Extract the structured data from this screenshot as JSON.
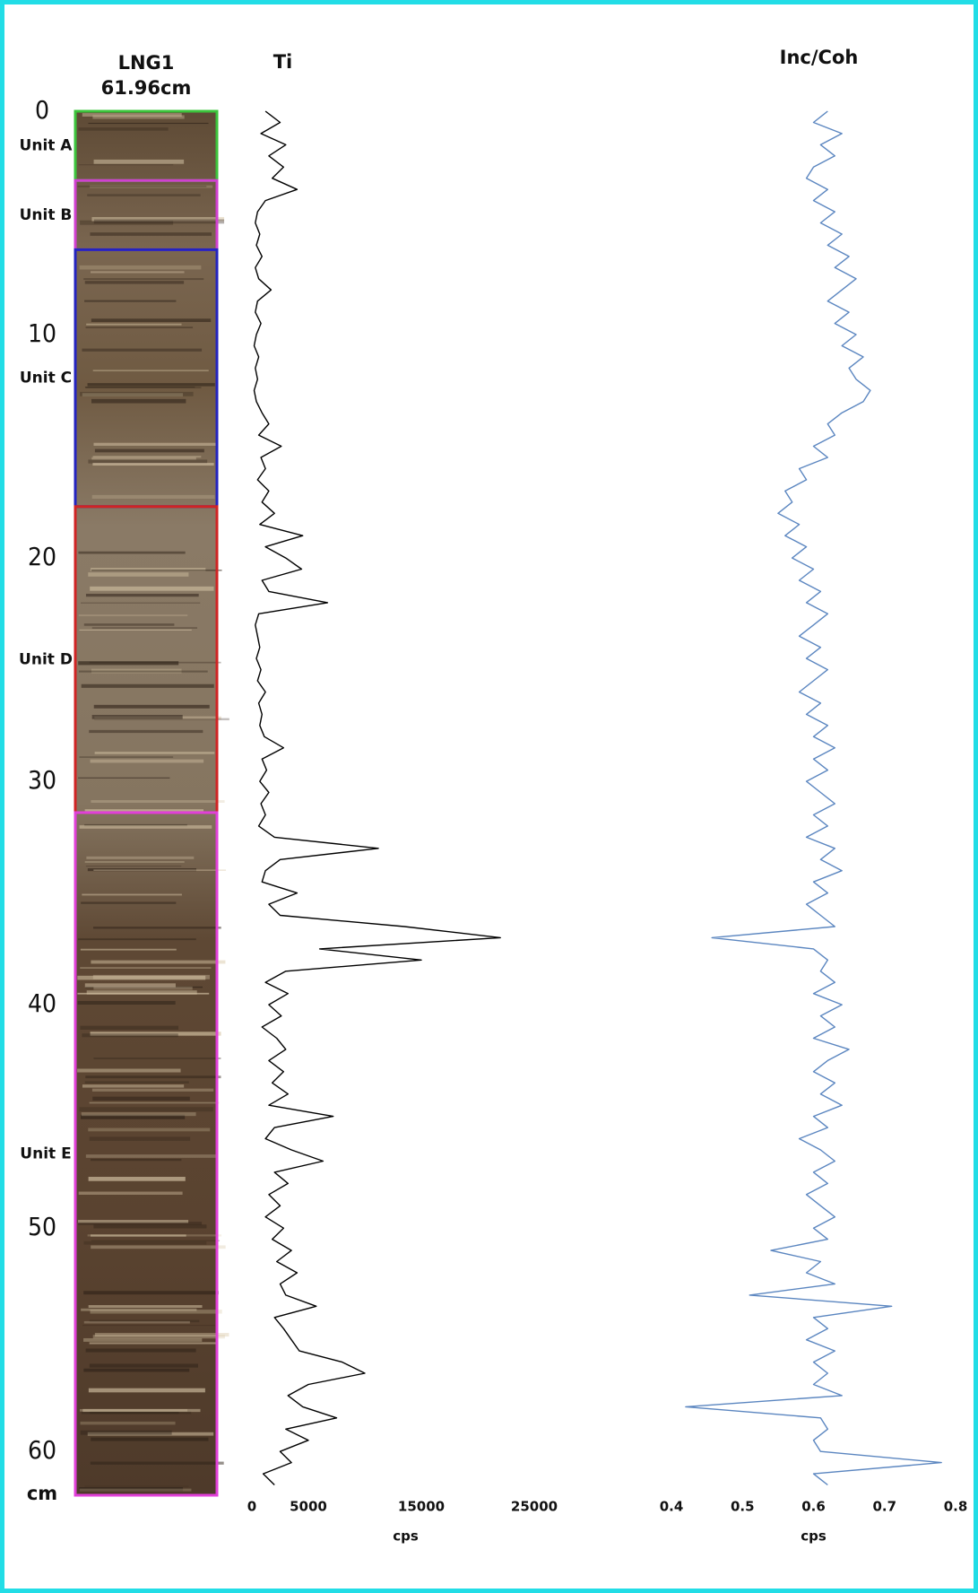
{
  "core": {
    "title": "LNG1",
    "length": "61.96cm",
    "units": [
      {
        "label": "Unit A",
        "top": 0,
        "bottom": 3.1,
        "color": "#3cc43c"
      },
      {
        "label": "Unit B",
        "top": 3.1,
        "bottom": 6.2,
        "color": "#d040d0"
      },
      {
        "label": "Unit C",
        "top": 6.2,
        "bottom": 17.7,
        "color": "#2424c0"
      },
      {
        "label": "Unit D",
        "top": 17.7,
        "bottom": 31.4,
        "color": "#d02424"
      },
      {
        "label": "Unit E",
        "top": 31.4,
        "bottom": 61.96,
        "color": "#e040d8"
      }
    ]
  },
  "chart_data": [
    {
      "type": "line",
      "title": "Ti",
      "x_label": "cps",
      "y_label": "cm",
      "color": "#000000",
      "xlim": [
        0,
        25000
      ],
      "xticks": [
        0,
        5000,
        15000,
        25000
      ],
      "ylim": [
        0,
        62
      ],
      "yticks": [
        0,
        10,
        20,
        30,
        40,
        50,
        60
      ],
      "depth": [
        0,
        0.5,
        1,
        1.5,
        2,
        2.5,
        3,
        3.5,
        4,
        4.5,
        5,
        5.5,
        6,
        6.5,
        7,
        7.5,
        8,
        8.5,
        9,
        9.5,
        10,
        10.5,
        11,
        11.5,
        12,
        12.5,
        13,
        13.5,
        14,
        14.5,
        15,
        15.5,
        16,
        16.5,
        17,
        17.5,
        18,
        18.5,
        19,
        19.5,
        20,
        20.5,
        21,
        21.5,
        22,
        22.5,
        23,
        23.5,
        24,
        24.5,
        25,
        25.5,
        26,
        26.5,
        27,
        27.5,
        28,
        28.5,
        29,
        29.5,
        30,
        30.5,
        31,
        31.5,
        32,
        32.5,
        33,
        33.5,
        34,
        34.5,
        35,
        35.5,
        36,
        36.5,
        37,
        37.5,
        38,
        38.5,
        39,
        39.5,
        40,
        40.5,
        41,
        41.5,
        42,
        42.5,
        43,
        43.5,
        44,
        44.5,
        45,
        45.5,
        46,
        46.5,
        47,
        47.5,
        48,
        48.5,
        49,
        49.5,
        50,
        50.5,
        51,
        51.5,
        52,
        52.5,
        53,
        53.5,
        54,
        54.5,
        55,
        55.5,
        56,
        56.5,
        57,
        57.5,
        58,
        58.5,
        59,
        59.5,
        60,
        60.5,
        61,
        61.5
      ],
      "values": [
        1200,
        2500,
        800,
        3000,
        1500,
        2800,
        1800,
        4000,
        1200,
        500,
        300,
        700,
        400,
        900,
        300,
        600,
        1700,
        500,
        300,
        800,
        400,
        200,
        600,
        300,
        500,
        200,
        400,
        900,
        1500,
        600,
        2600,
        800,
        1200,
        500,
        1500,
        900,
        2000,
        700,
        4500,
        1200,
        3000,
        4400,
        900,
        1500,
        6700,
        600,
        300,
        500,
        700,
        400,
        800,
        500,
        1200,
        600,
        900,
        700,
        1100,
        2800,
        900,
        1300,
        700,
        1500,
        800,
        1200,
        600,
        2000,
        11200,
        2500,
        1200,
        900,
        4000,
        1500,
        2500,
        13500,
        22000,
        6000,
        15000,
        3000,
        1200,
        3200,
        1500,
        2600,
        900,
        2200,
        3000,
        1500,
        2800,
        1800,
        3200,
        1500,
        7200,
        2000,
        1200,
        3500,
        6300,
        2000,
        3200,
        1500,
        2500,
        1200,
        2800,
        1800,
        3500,
        2200,
        4000,
        2500,
        3000,
        5700,
        2000,
        2800,
        3500,
        4200,
        8000,
        10000,
        5000,
        3200,
        4500,
        7500,
        3000,
        5000,
        2500,
        3500,
        1000,
        2000
      ]
    },
    {
      "type": "line",
      "title": "Inc/Coh",
      "x_label": "cps",
      "color": "#5b86c0",
      "xlim": [
        0.4,
        0.8
      ],
      "xticks": [
        0.4,
        0.5,
        0.6,
        0.7,
        0.8
      ],
      "ylim": [
        0,
        62
      ],
      "depth": [
        0,
        0.5,
        1,
        1.5,
        2,
        2.5,
        3,
        3.5,
        4,
        4.5,
        5,
        5.5,
        6,
        6.5,
        7,
        7.5,
        8,
        8.5,
        9,
        9.5,
        10,
        10.5,
        11,
        11.5,
        12,
        12.5,
        13,
        13.5,
        14,
        14.5,
        15,
        15.5,
        16,
        16.5,
        17,
        17.5,
        18,
        18.5,
        19,
        19.5,
        20,
        20.5,
        21,
        21.5,
        22,
        22.5,
        23,
        23.5,
        24,
        24.5,
        25,
        25.5,
        26,
        26.5,
        27,
        27.5,
        28,
        28.5,
        29,
        29.5,
        30,
        30.5,
        31,
        31.5,
        32,
        32.5,
        33,
        33.5,
        34,
        34.5,
        35,
        35.5,
        36,
        36.5,
        37,
        37.5,
        38,
        38.5,
        39,
        39.5,
        40,
        40.5,
        41,
        41.5,
        42,
        42.5,
        43,
        43.5,
        44,
        44.5,
        45,
        45.5,
        46,
        46.5,
        47,
        47.5,
        48,
        48.5,
        49,
        49.5,
        50,
        50.5,
        51,
        51.5,
        52,
        52.5,
        53,
        53.5,
        54,
        54.5,
        55,
        55.5,
        56,
        56.5,
        57,
        57.5,
        58,
        58.5,
        59,
        59.5,
        60,
        60.5,
        61,
        61.5
      ],
      "values": [
        0.62,
        0.6,
        0.64,
        0.61,
        0.63,
        0.6,
        0.59,
        0.62,
        0.6,
        0.63,
        0.61,
        0.64,
        0.62,
        0.65,
        0.63,
        0.66,
        0.64,
        0.62,
        0.65,
        0.63,
        0.66,
        0.64,
        0.67,
        0.65,
        0.66,
        0.68,
        0.67,
        0.64,
        0.62,
        0.63,
        0.6,
        0.62,
        0.58,
        0.59,
        0.56,
        0.57,
        0.55,
        0.58,
        0.56,
        0.59,
        0.57,
        0.6,
        0.58,
        0.61,
        0.59,
        0.62,
        0.6,
        0.58,
        0.61,
        0.59,
        0.62,
        0.6,
        0.58,
        0.61,
        0.59,
        0.62,
        0.6,
        0.63,
        0.6,
        0.62,
        0.59,
        0.61,
        0.63,
        0.6,
        0.62,
        0.59,
        0.63,
        0.61,
        0.64,
        0.6,
        0.62,
        0.59,
        0.61,
        0.63,
        0.457,
        0.6,
        0.62,
        0.61,
        0.63,
        0.6,
        0.64,
        0.61,
        0.63,
        0.6,
        0.65,
        0.62,
        0.6,
        0.63,
        0.61,
        0.64,
        0.6,
        0.62,
        0.58,
        0.61,
        0.63,
        0.6,
        0.62,
        0.59,
        0.61,
        0.63,
        0.6,
        0.62,
        0.54,
        0.61,
        0.59,
        0.63,
        0.51,
        0.71,
        0.6,
        0.62,
        0.59,
        0.63,
        0.6,
        0.62,
        0.6,
        0.64,
        0.42,
        0.61,
        0.62,
        0.6,
        0.61,
        0.78,
        0.6,
        0.62
      ]
    }
  ]
}
